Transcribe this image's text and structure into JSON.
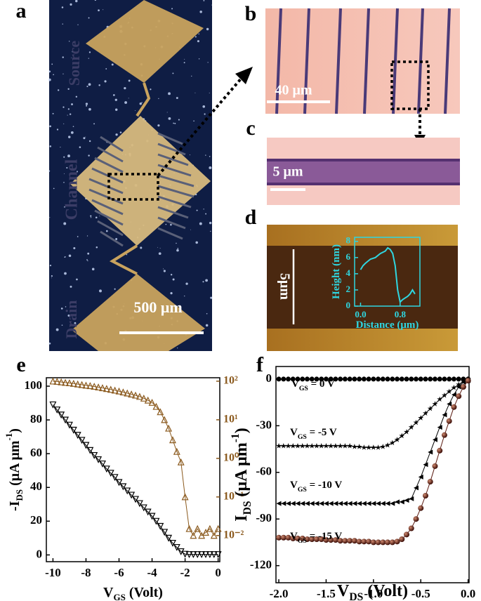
{
  "panel_labels": [
    "a",
    "b",
    "c",
    "d",
    "e",
    "f"
  ],
  "panel_a": {
    "source": "Source",
    "channel": "Channel",
    "drain": "Drain",
    "scale": "500 μm"
  },
  "panel_b": {
    "scale": "40 μm"
  },
  "panel_c": {
    "scale": "5 μm"
  },
  "panel_d": {
    "scale": "5μm"
  },
  "chart_data": [
    {
      "type": "line",
      "x_label": [
        [
          "V"
        ],
        [
          "GS",
          "sub"
        ],
        [
          " (Volt)"
        ]
      ],
      "y_label": [
        [
          "-I"
        ],
        [
          "DS",
          "sub"
        ],
        [
          " (μA μm"
        ],
        [
          "-1",
          "super"
        ],
        [
          ")"
        ]
      ],
      "xlim": [
        -10.4,
        0.1
      ],
      "xticks": [
        -10,
        -8,
        -6,
        -4,
        -2,
        0
      ],
      "ylim": [
        -4,
        105
      ],
      "yticks": [
        0,
        20,
        40,
        60,
        80,
        100
      ],
      "y2lim": [
        0.0021,
        123
      ],
      "y2_log": true,
      "y2_color": "#8b5a1e",
      "y2ticks": [
        {
          "value": 100,
          "label": "10²"
        },
        {
          "value": 10,
          "label": "10¹"
        },
        {
          "value": 1,
          "label": "10⁰"
        },
        {
          "value": 0.1,
          "label": "10⁻¹"
        },
        {
          "value": 0.01,
          "label": "10⁻²"
        }
      ],
      "x": [
        -10,
        -9.75,
        -9.5,
        -9.25,
        -9,
        -8.75,
        -8.5,
        -8.25,
        -8,
        -7.75,
        -7.5,
        -7.25,
        -7,
        -6.75,
        -6.5,
        -6.25,
        -6,
        -5.75,
        -5.5,
        -5.25,
        -5,
        -4.75,
        -4.5,
        -4.25,
        -4,
        -3.75,
        -3.5,
        -3.25,
        -3,
        -2.75,
        -2.5,
        -2.25,
        -2,
        -1.75,
        -1.5,
        -1.25,
        -1,
        -0.75,
        -0.5,
        -0.25,
        0
      ],
      "series": [
        {
          "color": "#000000",
          "marker": "triangle-down",
          "values": [
            89,
            86,
            83,
            80,
            77,
            74,
            71,
            68,
            65,
            62,
            59,
            56.5,
            54,
            51,
            48.5,
            46,
            43,
            40.5,
            38,
            35.5,
            33,
            30.5,
            28,
            25.5,
            23,
            20,
            17,
            13.5,
            10,
            7,
            4.5,
            2,
            0.5,
            0.3,
            0.3,
            0.3,
            0.3,
            0.3,
            0.3,
            0.3,
            0.3
          ]
        },
        {
          "color": "#8b5a1e",
          "marker": "triangle-up",
          "axis": "y2",
          "values": [
            100,
            98,
            95,
            92,
            90,
            87,
            84,
            81,
            78,
            76,
            73,
            70,
            67,
            64,
            61,
            58,
            55,
            52,
            49,
            46,
            43,
            40,
            36,
            32,
            28,
            22,
            16,
            10,
            6,
            3,
            1.5,
            0.8,
            0.1,
            0.015,
            0.01,
            0.015,
            0.01,
            0.012,
            0.015,
            0.01,
            0.015
          ]
        }
      ]
    },
    {
      "type": "line",
      "x_label": [
        [
          "V"
        ],
        [
          "DS",
          "sub"
        ],
        [
          " (Volt)"
        ]
      ],
      "y_label": [
        [
          "I"
        ],
        [
          "DS",
          "sub"
        ],
        [
          " (μA μm"
        ],
        [
          "-1",
          "super"
        ],
        [
          ")"
        ]
      ],
      "xlim": [
        -2.03,
        0.01
      ],
      "xticks": [
        {
          "value": -2,
          "label": "-2.0"
        },
        -1.5,
        {
          "value": -1,
          "label": "-1.0"
        },
        -0.5,
        {
          "value": 0,
          "label": "0.0"
        }
      ],
      "ylim": [
        -131,
        8.1
      ],
      "yticks": [
        0,
        -30,
        -60,
        -90,
        -120
      ],
      "annotations": [
        [
          [
            "V"
          ],
          [
            "GS",
            "sub"
          ],
          [
            " = 0 V"
          ]
        ],
        [
          [
            "V"
          ],
          [
            "GS",
            "sub"
          ],
          [
            " = -5 V"
          ]
        ],
        [
          [
            "V"
          ],
          [
            "GS",
            "sub"
          ],
          [
            " = -10 V"
          ]
        ],
        [
          [
            "V"
          ],
          [
            "GS",
            "sub"
          ],
          [
            " = -15 V"
          ]
        ]
      ],
      "x": [
        -2,
        -1.95,
        -1.9,
        -1.85,
        -1.8,
        -1.75,
        -1.7,
        -1.65,
        -1.6,
        -1.55,
        -1.5,
        -1.45,
        -1.4,
        -1.35,
        -1.3,
        -1.25,
        -1.2,
        -1.15,
        -1.1,
        -1.05,
        -1,
        -0.95,
        -0.9,
        -0.85,
        -0.8,
        -0.75,
        -0.7,
        -0.65,
        -0.6,
        -0.55,
        -0.5,
        -0.45,
        -0.4,
        -0.35,
        -0.3,
        -0.25,
        -0.2,
        -0.15,
        -0.1,
        -0.05,
        0
      ],
      "series": [
        {
          "color": "#000000",
          "marker": "circle",
          "values": [
            0,
            0,
            0,
            0,
            0,
            0,
            0,
            0,
            0,
            0,
            0,
            0,
            0,
            0,
            0,
            0,
            0,
            0,
            0,
            0,
            0,
            0,
            0,
            0,
            0,
            0,
            0,
            0,
            0,
            0,
            0,
            0,
            0,
            0,
            0,
            0,
            0,
            0,
            0,
            0,
            0
          ]
        },
        {
          "color": "#000000",
          "marker": "star",
          "values": [
            -43,
            -43,
            -43,
            -43,
            -43,
            -43,
            -43,
            -43,
            -43,
            -43,
            -43,
            -43,
            -43,
            -43,
            -43,
            -43,
            -43.5,
            -43.5,
            -44,
            -44,
            -44,
            -44,
            -43.5,
            -42.5,
            -41,
            -39,
            -36.5,
            -34,
            -31,
            -28,
            -25,
            -22,
            -19,
            -16,
            -13,
            -10.5,
            -8,
            -5.5,
            -3.5,
            -1.5,
            0
          ]
        },
        {
          "color": "#000000",
          "marker": "triangle-left",
          "values": [
            -80,
            -80,
            -80,
            -80,
            -80,
            -80,
            -80,
            -80,
            -80,
            -80,
            -80,
            -80,
            -80,
            -80,
            -80,
            -80,
            -80,
            -80,
            -80,
            -80,
            -80,
            -80,
            -80,
            -80,
            -80,
            -79,
            -79,
            -78,
            -77,
            -70,
            -63,
            -55,
            -47,
            -39,
            -31,
            -23,
            -16,
            -10,
            -5,
            -2,
            -1
          ]
        },
        {
          "color": "#5a1a10",
          "marker": "sphere",
          "values": [
            -102,
            -102,
            -102,
            -102.5,
            -102.5,
            -102.5,
            -103,
            -103,
            -103,
            -103,
            -103.5,
            -103.5,
            -103.5,
            -104,
            -104,
            -104,
            -104,
            -104.5,
            -104.5,
            -104.5,
            -105,
            -105,
            -105,
            -105,
            -105,
            -104.5,
            -103,
            -100,
            -96,
            -90,
            -83,
            -75,
            -66,
            -56,
            -46,
            -36,
            -27,
            -18,
            -11,
            -5,
            -1
          ]
        }
      ]
    },
    {
      "type": "line",
      "color": "#2fd6e0",
      "x_label": [
        [
          "Distance (μm)"
        ]
      ],
      "y_label": [
        [
          "Height (nm)"
        ]
      ],
      "xlim": [
        -0.12,
        1.2
      ],
      "xticks": [
        {
          "value": 0,
          "label": "0.0"
        },
        0.8
      ],
      "ylim": [
        0,
        8.5
      ],
      "yticks": [
        0,
        2,
        4,
        6,
        8
      ],
      "x": [
        0,
        0.05,
        0.1,
        0.2,
        0.3,
        0.4,
        0.5,
        0.55,
        0.6,
        0.65,
        0.7,
        0.75,
        0.8,
        0.85,
        0.9,
        0.95,
        1.0,
        1.05,
        1.1
      ],
      "series": [
        {
          "color": "#2fd6e0",
          "marker": "none",
          "values": [
            4.5,
            5,
            5.3,
            5.8,
            6,
            6.5,
            6.8,
            7.2,
            7,
            6.5,
            5,
            2,
            0.5,
            0.8,
            1,
            1.2,
            1.5,
            2,
            1.5
          ]
        }
      ]
    }
  ]
}
